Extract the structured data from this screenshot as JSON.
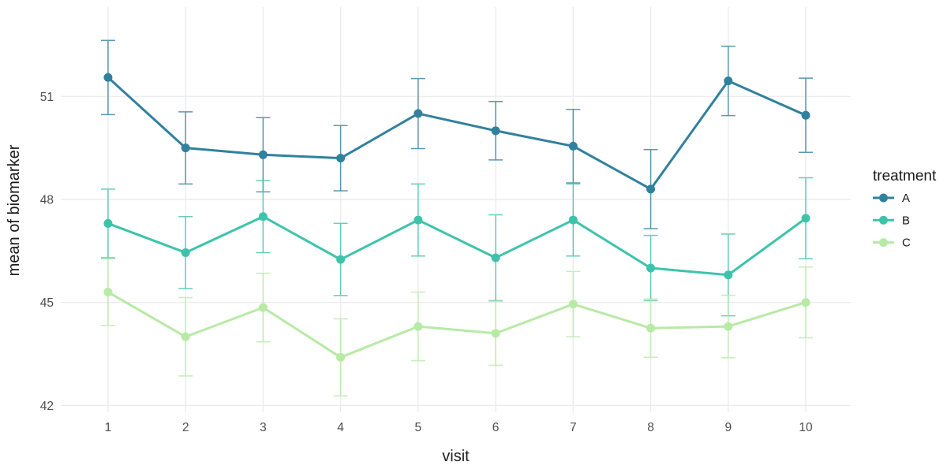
{
  "chart_data": {
    "type": "line",
    "title": "",
    "xlabel": "visit",
    "ylabel": "mean of biomarker",
    "x": [
      1,
      2,
      3,
      4,
      5,
      6,
      7,
      8,
      9,
      10
    ],
    "xticks": [
      "1",
      "2",
      "3",
      "4",
      "5",
      "6",
      "7",
      "8",
      "9",
      "10"
    ],
    "yticks": [
      42,
      45,
      48,
      51
    ],
    "xlim": [
      0.39,
      10.58
    ],
    "ylim": [
      41.8,
      53.6
    ],
    "grid": true,
    "legend_position": "right",
    "point_style": "circle-with-errorbars",
    "series": [
      {
        "name": "A",
        "color": "#30819e",
        "values": [
          51.55,
          49.5,
          49.3,
          49.2,
          50.5,
          50.0,
          49.55,
          48.3,
          51.45,
          50.45
        ],
        "errors": [
          1.08,
          1.05,
          1.08,
          0.95,
          1.02,
          0.85,
          1.07,
          1.15,
          1.01,
          1.08
        ]
      },
      {
        "name": "B",
        "color": "#3ec3ab",
        "values": [
          47.3,
          46.45,
          47.5,
          46.25,
          47.4,
          46.3,
          47.4,
          46.0,
          45.8,
          47.45
        ],
        "errors": [
          1.0,
          1.05,
          1.05,
          1.05,
          1.05,
          1.25,
          1.05,
          0.95,
          1.19,
          1.18
        ]
      },
      {
        "name": "C",
        "color": "#b7eaa5",
        "values": [
          45.3,
          44.0,
          44.85,
          43.4,
          44.3,
          44.1,
          44.95,
          44.25,
          44.3,
          45.0
        ],
        "errors": [
          0.97,
          1.14,
          1.0,
          1.12,
          1.0,
          0.93,
          0.95,
          0.85,
          0.91,
          1.03
        ]
      }
    ],
    "legend": {
      "title": "treatment",
      "entries": [
        "A",
        "B",
        "C"
      ]
    },
    "colors": {
      "grid": "#ebebeb",
      "tick_text": "#4d4d4d",
      "title_text": "#1a1a1a",
      "background": "#ffffff"
    }
  }
}
